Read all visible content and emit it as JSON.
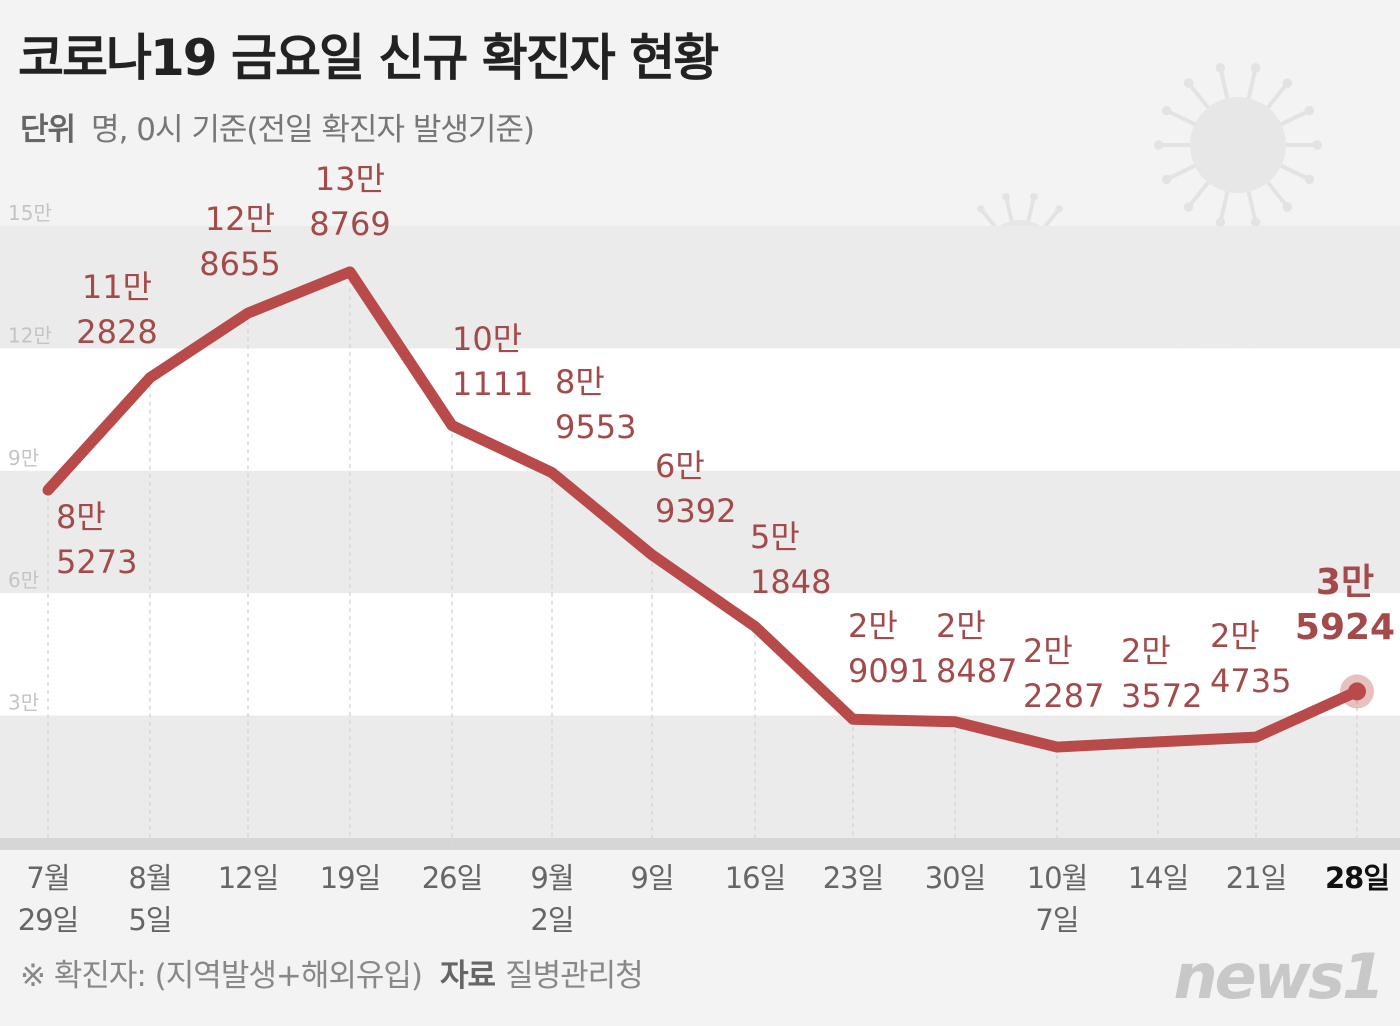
{
  "title": "코로나19 금요일 신규 확진자 현황",
  "unit_label": "단위",
  "unit_text": "명, 0시 기준(전일 확진자 발생기준)",
  "footnote": "※ 확진자: (지역발생+해외유입)",
  "source_label": "자료",
  "source": "질병관리청",
  "logo": "news1",
  "colors": {
    "line": "#b94a4a",
    "label": "#a34b4b",
    "highlight": "#a34b4b",
    "band": "#ebebeb",
    "background": "#f3f3f3"
  },
  "chart_data": {
    "type": "line",
    "title": "코로나19 금요일 신규 확진자 현황",
    "xlabel": "",
    "ylabel": "",
    "ylim": [
      0,
      150000
    ],
    "yticks": [
      30000,
      60000,
      90000,
      120000,
      150000
    ],
    "ytick_labels": [
      "3만",
      "6만",
      "9만",
      "12만",
      "15만"
    ],
    "grid": "horizontal bands",
    "categories": [
      [
        "7월",
        "29일"
      ],
      [
        "8월",
        "5일"
      ],
      [
        "12일"
      ],
      [
        "19일"
      ],
      [
        "26일"
      ],
      [
        "9월",
        "2일"
      ],
      [
        "9일"
      ],
      [
        "16일"
      ],
      [
        "23일"
      ],
      [
        "30일"
      ],
      [
        "10월",
        "7일"
      ],
      [
        "14일"
      ],
      [
        "21일"
      ],
      [
        "28일"
      ]
    ],
    "values": [
      85273,
      112828,
      128655,
      138769,
      101111,
      89553,
      69392,
      51848,
      29091,
      28487,
      22287,
      23572,
      24735,
      35924
    ],
    "data_labels": [
      [
        "8만",
        "5273"
      ],
      [
        "11만",
        "2828"
      ],
      [
        "12만",
        "8655"
      ],
      [
        "13만",
        "8769"
      ],
      [
        "10만",
        "1111"
      ],
      [
        "8만",
        "9553"
      ],
      [
        "6만",
        "9392"
      ],
      [
        "5만",
        "1848"
      ],
      [
        "2만",
        "9091"
      ],
      [
        "2만",
        "8487"
      ],
      [
        "2만",
        "2287"
      ],
      [
        "2만",
        "3572"
      ],
      [
        "2만",
        "4735"
      ],
      [
        "3만",
        "5924"
      ]
    ],
    "highlight_index": 13
  }
}
